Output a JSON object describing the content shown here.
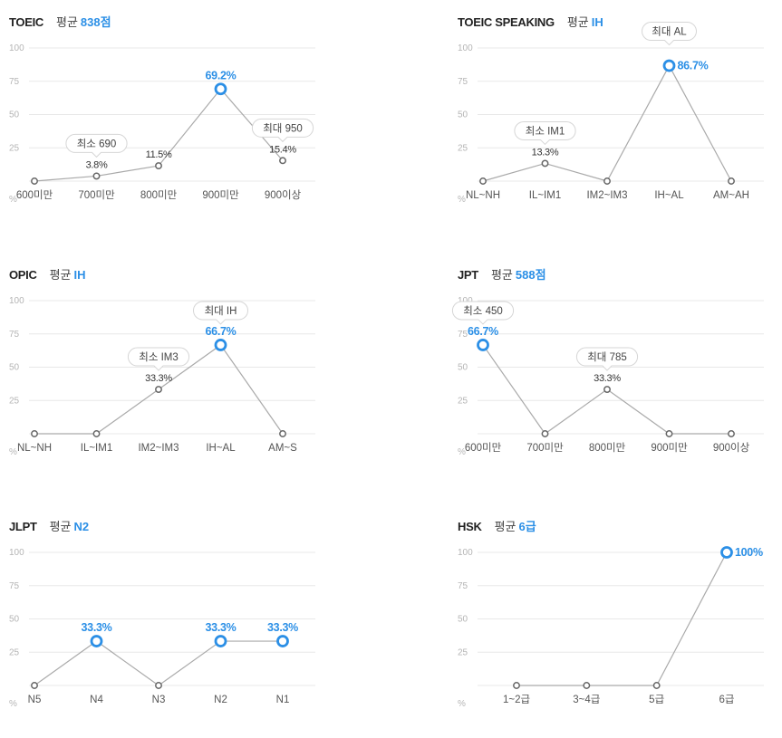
{
  "colors": {
    "accent": "#2b8fe6",
    "line": "#aaaaaa",
    "point": "#666666",
    "grid": "#e8e8e8"
  },
  "chart_data": [
    {
      "type": "line",
      "title": "TOEIC",
      "average_label": "평균",
      "average_value": "838점",
      "unit": "%",
      "ylim": [
        0,
        100
      ],
      "yticks": [
        25,
        50,
        75,
        100
      ],
      "grid": true,
      "categories": [
        "600미만",
        "700미만",
        "800미만",
        "900미만",
        "900이상"
      ],
      "values": [
        0,
        3.8,
        11.5,
        69.2,
        15.4
      ],
      "data_labels": [
        "",
        "3.8%",
        "11.5%",
        "69.2%",
        "15.4%"
      ],
      "highlight_index": 3,
      "annotations": [
        {
          "text": "최소 690",
          "index": 1
        },
        {
          "text": "최대 950",
          "index": 4
        }
      ]
    },
    {
      "type": "line",
      "title": "TOEIC SPEAKING",
      "average_label": "평균",
      "average_value": "IH",
      "unit": "%",
      "ylim": [
        0,
        100
      ],
      "yticks": [
        25,
        50,
        75,
        100
      ],
      "grid": true,
      "categories": [
        "NL~NH",
        "IL~IM1",
        "IM2~IM3",
        "IH~AL",
        "AM~AH"
      ],
      "values": [
        0,
        13.3,
        0,
        86.7,
        0
      ],
      "data_labels": [
        "",
        "13.3%",
        "",
        "86.7%",
        ""
      ],
      "highlight_index": 3,
      "annotations": [
        {
          "text": "최소 IM1",
          "index": 1
        },
        {
          "text": "최대 AL",
          "index": 3
        }
      ]
    },
    {
      "type": "line",
      "title": "OPIC",
      "average_label": "평균",
      "average_value": "IH",
      "unit": "%",
      "ylim": [
        0,
        100
      ],
      "yticks": [
        25,
        50,
        75,
        100
      ],
      "grid": true,
      "categories": [
        "NL~NH",
        "IL~IM1",
        "IM2~IM3",
        "IH~AL",
        "AM~S"
      ],
      "values": [
        0,
        0,
        33.3,
        66.7,
        0
      ],
      "data_labels": [
        "",
        "",
        "33.3%",
        "66.7%",
        ""
      ],
      "highlight_index": 3,
      "annotations": [
        {
          "text": "최소 IM3",
          "index": 2
        },
        {
          "text": "최대 IH",
          "index": 3
        }
      ]
    },
    {
      "type": "line",
      "title": "JPT",
      "average_label": "평균",
      "average_value": "588점",
      "unit": "%",
      "ylim": [
        0,
        100
      ],
      "yticks": [
        25,
        50,
        75,
        100
      ],
      "grid": true,
      "categories": [
        "600미만",
        "700미만",
        "800미만",
        "900미만",
        "900이상"
      ],
      "values": [
        66.7,
        0,
        33.3,
        0,
        0
      ],
      "data_labels": [
        "66.7%",
        "",
        "33.3%",
        "",
        ""
      ],
      "highlight_index": 0,
      "annotations": [
        {
          "text": "최소 450",
          "index": 0
        },
        {
          "text": "최대 785",
          "index": 2
        }
      ]
    },
    {
      "type": "line",
      "title": "JLPT",
      "average_label": "평균",
      "average_value": "N2",
      "unit": "%",
      "ylim": [
        0,
        100
      ],
      "yticks": [
        25,
        50,
        75,
        100
      ],
      "grid": true,
      "categories": [
        "N5",
        "N4",
        "N3",
        "N2",
        "N1"
      ],
      "values": [
        0,
        33.3,
        0,
        33.3,
        33.3
      ],
      "data_labels": [
        "",
        "33.3%",
        "",
        "33.3%",
        "33.3%"
      ],
      "highlight_indices": [
        1,
        3,
        4
      ],
      "annotations": []
    },
    {
      "type": "line",
      "title": "HSK",
      "average_label": "평균",
      "average_value": "6급",
      "unit": "%",
      "ylim": [
        0,
        100
      ],
      "yticks": [
        25,
        50,
        75,
        100
      ],
      "grid": true,
      "categories": [
        "1~2급",
        "3~4급",
        "5급",
        "6급"
      ],
      "values": [
        0,
        0,
        0,
        100
      ],
      "data_labels": [
        "",
        "",
        "",
        "100%"
      ],
      "highlight_index": 3,
      "annotations": []
    }
  ]
}
